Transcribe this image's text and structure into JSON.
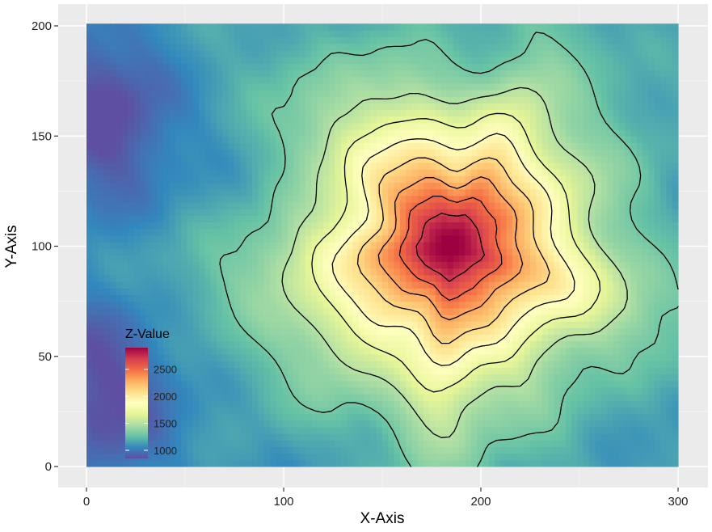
{
  "chart_data": {
    "type": "heatmap",
    "title": "",
    "xlabel": "X-Axis",
    "ylabel": "Y-Axis",
    "xlim": [
      0,
      300
    ],
    "ylim": [
      0,
      200
    ],
    "x_ticks": [
      0,
      100,
      200,
      300
    ],
    "y_ticks": [
      0,
      50,
      100,
      150,
      200
    ],
    "x_tick_labels": [
      "0",
      "100",
      "200",
      "300"
    ],
    "y_tick_labels": [
      "0",
      "50",
      "100",
      "150",
      "200"
    ],
    "grid": true,
    "legend": {
      "title": "Z-Value",
      "placement": "inside-bottom-left",
      "z_range": [
        850,
        2900
      ],
      "breaks": [
        1000,
        1500,
        2000,
        2500
      ],
      "break_labels": [
        "1000",
        "1500",
        "2000",
        "2500"
      ],
      "palette": [
        "#5E4FA2",
        "#3288BD",
        "#66C2A5",
        "#ABDDA4",
        "#E6F598",
        "#FFFFBF",
        "#FEE08B",
        "#FDAE61",
        "#F46D43",
        "#D53E4F",
        "#9E0142"
      ]
    },
    "surface": {
      "peak": {
        "x": 185,
        "y": 100,
        "z": 2900
      },
      "base_z": 1100,
      "contour_levels": [
        1300,
        1500,
        1700,
        1900,
        2100,
        2300,
        2500,
        2700
      ]
    }
  }
}
